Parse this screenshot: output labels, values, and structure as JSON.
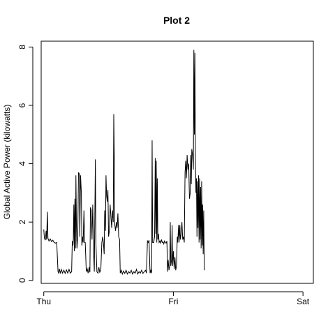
{
  "chart_data": {
    "type": "line",
    "title": "Plot 2",
    "xlabel": "",
    "ylabel": "Global Active Power (kilowatts)",
    "x_ticks": [
      {
        "label": "Thu",
        "value": 0
      },
      {
        "label": "Fri",
        "value": 1
      },
      {
        "label": "Sat",
        "value": 2
      }
    ],
    "y_ticks": [
      0,
      2,
      4,
      6,
      8
    ],
    "xlim": [
      -0.02,
      2.08
    ],
    "ylim": [
      -0.1,
      8.2
    ],
    "x_unit": "days since Thu 00:00",
    "grid": false,
    "line_color": "#000000",
    "series": [
      {
        "points": [
          [
            0.0,
            1.75
          ],
          [
            0.005,
            1.45
          ],
          [
            0.012,
            1.38
          ],
          [
            0.018,
            1.7
          ],
          [
            0.022,
            1.4
          ],
          [
            0.028,
            2.35
          ],
          [
            0.032,
            1.45
          ],
          [
            0.04,
            1.35
          ],
          [
            0.05,
            1.42
          ],
          [
            0.06,
            1.33
          ],
          [
            0.07,
            1.38
          ],
          [
            0.08,
            1.3
          ],
          [
            0.09,
            1.28
          ],
          [
            0.1,
            1.3
          ],
          [
            0.11,
            0.3
          ],
          [
            0.115,
            0.25
          ],
          [
            0.12,
            0.4
          ],
          [
            0.128,
            0.24
          ],
          [
            0.135,
            0.38
          ],
          [
            0.145,
            0.25
          ],
          [
            0.155,
            0.35
          ],
          [
            0.165,
            0.24
          ],
          [
            0.175,
            0.36
          ],
          [
            0.185,
            0.25
          ],
          [
            0.195,
            0.38
          ],
          [
            0.205,
            0.25
          ],
          [
            0.215,
            0.3
          ],
          [
            0.22,
            1.35
          ],
          [
            0.225,
            1.2
          ],
          [
            0.228,
            1.4
          ],
          [
            0.232,
            2.6
          ],
          [
            0.236,
            1.0
          ],
          [
            0.24,
            2.8
          ],
          [
            0.245,
            1.1
          ],
          [
            0.248,
            3.6
          ],
          [
            0.252,
            1.9
          ],
          [
            0.256,
            1.1
          ],
          [
            0.262,
            1.5
          ],
          [
            0.268,
            3.7
          ],
          [
            0.274,
            3.65
          ],
          [
            0.278,
            1.5
          ],
          [
            0.284,
            3.6
          ],
          [
            0.29,
            3.0
          ],
          [
            0.294,
            1.2
          ],
          [
            0.3,
            1.5
          ],
          [
            0.304,
            1.3
          ],
          [
            0.31,
            2.4
          ],
          [
            0.315,
            1.3
          ],
          [
            0.32,
            1.3
          ],
          [
            0.328,
            0.3
          ],
          [
            0.335,
            0.4
          ],
          [
            0.342,
            0.25
          ],
          [
            0.35,
            0.45
          ],
          [
            0.356,
            0.28
          ],
          [
            0.36,
            2.5
          ],
          [
            0.366,
            2.4
          ],
          [
            0.372,
            1.4
          ],
          [
            0.378,
            2.6
          ],
          [
            0.384,
            1.0
          ],
          [
            0.39,
            0.3
          ],
          [
            0.398,
            4.15
          ],
          [
            0.402,
            1.3
          ],
          [
            0.41,
            0.3
          ],
          [
            0.418,
            0.25
          ],
          [
            0.425,
            0.45
          ],
          [
            0.432,
            0.28
          ],
          [
            0.44,
            0.35
          ],
          [
            0.448,
            1.3
          ],
          [
            0.455,
            1.5
          ],
          [
            0.46,
            1.3
          ],
          [
            0.466,
            0.9
          ],
          [
            0.47,
            2.4
          ],
          [
            0.476,
            1.7
          ],
          [
            0.48,
            3.6
          ],
          [
            0.485,
            2.9
          ],
          [
            0.49,
            2.7
          ],
          [
            0.495,
            3.1
          ],
          [
            0.5,
            1.5
          ],
          [
            0.506,
            1.7
          ],
          [
            0.512,
            2.6
          ],
          [
            0.518,
            2.2
          ],
          [
            0.524,
            1.8
          ],
          [
            0.53,
            2.4
          ],
          [
            0.536,
            2.0
          ],
          [
            0.54,
            5.7
          ],
          [
            0.544,
            4.2
          ],
          [
            0.548,
            1.9
          ],
          [
            0.554,
            1.7
          ],
          [
            0.56,
            2.0
          ],
          [
            0.566,
            1.8
          ],
          [
            0.572,
            2.3
          ],
          [
            0.578,
            1.5
          ],
          [
            0.585,
            1.4
          ],
          [
            0.59,
            0.25
          ],
          [
            0.598,
            0.35
          ],
          [
            0.606,
            0.22
          ],
          [
            0.615,
            0.32
          ],
          [
            0.625,
            0.24
          ],
          [
            0.635,
            0.35
          ],
          [
            0.645,
            0.22
          ],
          [
            0.655,
            0.3
          ],
          [
            0.665,
            0.25
          ],
          [
            0.675,
            0.35
          ],
          [
            0.685,
            0.22
          ],
          [
            0.695,
            0.3
          ],
          [
            0.705,
            0.25
          ],
          [
            0.715,
            0.38
          ],
          [
            0.725,
            0.22
          ],
          [
            0.735,
            0.3
          ],
          [
            0.745,
            0.25
          ],
          [
            0.755,
            0.35
          ],
          [
            0.765,
            0.24
          ],
          [
            0.775,
            0.3
          ],
          [
            0.785,
            0.35
          ],
          [
            0.792,
            0.25
          ],
          [
            0.8,
            1.35
          ],
          [
            0.806,
            1.3
          ],
          [
            0.812,
            1.38
          ],
          [
            0.82,
            0.25
          ],
          [
            0.826,
            0.35
          ],
          [
            0.832,
            0.25
          ],
          [
            0.836,
            4.8
          ],
          [
            0.84,
            1.3
          ],
          [
            0.848,
            1.3
          ],
          [
            0.855,
            1.5
          ],
          [
            0.86,
            4.2
          ],
          [
            0.864,
            1.6
          ],
          [
            0.868,
            4.1
          ],
          [
            0.872,
            1.3
          ],
          [
            0.876,
            3.5
          ],
          [
            0.88,
            1.4
          ],
          [
            0.885,
            1.6
          ],
          [
            0.89,
            1.3
          ],
          [
            0.896,
            1.35
          ],
          [
            0.902,
            1.28
          ],
          [
            0.908,
            1.4
          ],
          [
            0.914,
            1.3
          ],
          [
            0.92,
            1.32
          ],
          [
            0.926,
            1.25
          ],
          [
            0.932,
            1.35
          ],
          [
            0.938,
            1.3
          ],
          [
            0.944,
            1.28
          ],
          [
            0.95,
            1.35
          ],
          [
            0.955,
            0.3
          ],
          [
            0.96,
            0.7
          ],
          [
            0.966,
            0.35
          ],
          [
            0.972,
            0.5
          ],
          [
            0.976,
            2.0
          ],
          [
            0.98,
            0.5
          ],
          [
            0.986,
            0.7
          ],
          [
            0.99,
            1.9
          ],
          [
            0.994,
            0.5
          ],
          [
            1.0,
            1.0
          ],
          [
            1.006,
            0.4
          ],
          [
            1.012,
            0.8
          ],
          [
            1.018,
            0.35
          ],
          [
            1.024,
            0.5
          ],
          [
            1.03,
            1.5
          ],
          [
            1.034,
            1.3
          ],
          [
            1.04,
            1.9
          ],
          [
            1.044,
            1.3
          ],
          [
            1.05,
            1.9
          ],
          [
            1.054,
            1.4
          ],
          [
            1.06,
            1.6
          ],
          [
            1.066,
            2.0
          ],
          [
            1.072,
            1.4
          ],
          [
            1.078,
            1.5
          ],
          [
            1.084,
            1.3
          ],
          [
            1.09,
            3.7
          ],
          [
            1.095,
            4.1
          ],
          [
            1.1,
            3.5
          ],
          [
            1.106,
            4.3
          ],
          [
            1.112,
            3.8
          ],
          [
            1.118,
            4.0
          ],
          [
            1.124,
            2.8
          ],
          [
            1.13,
            3.0
          ],
          [
            1.134,
            4.3
          ],
          [
            1.138,
            3.3
          ],
          [
            1.142,
            4.5
          ],
          [
            1.148,
            4.3
          ],
          [
            1.154,
            3.8
          ],
          [
            1.158,
            7.9
          ],
          [
            1.162,
            5.0
          ],
          [
            1.166,
            7.8
          ],
          [
            1.17,
            4.0
          ],
          [
            1.174,
            3.0
          ],
          [
            1.178,
            3.5
          ],
          [
            1.182,
            1.5
          ],
          [
            1.186,
            3.4
          ],
          [
            1.19,
            1.8
          ],
          [
            1.194,
            3.6
          ],
          [
            1.198,
            1.3
          ],
          [
            1.202,
            3.5
          ],
          [
            1.206,
            1.4
          ],
          [
            1.21,
            3.2
          ],
          [
            1.214,
            1.1
          ],
          [
            1.218,
            3.4
          ],
          [
            1.222,
            1.2
          ],
          [
            1.226,
            2.6
          ],
          [
            1.23,
            0.9
          ],
          [
            1.234,
            2.4
          ],
          [
            1.238,
            0.45
          ],
          [
            1.241,
            0.35
          ]
        ]
      }
    ]
  }
}
